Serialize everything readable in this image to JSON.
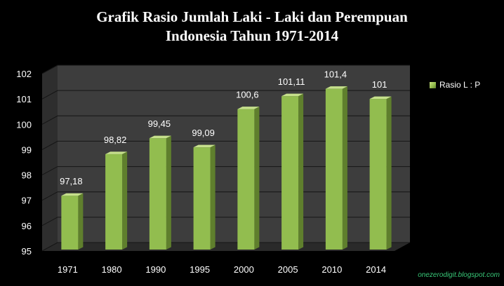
{
  "title_line1": "Grafik Rasio Jumlah Laki - Laki dan Perempuan",
  "title_line2": "Indonesia Tahun 1971-2014",
  "legend_label": "Rasio L : P",
  "watermark": "onezerodigit.blogspot.com",
  "colors": {
    "background": "#000000",
    "bar_front": "#92bd4f",
    "bar_side": "#5f7f2d",
    "bar_top": "#c6e08c",
    "wall": "#3d3d3d",
    "floor": "#2a2a2a",
    "text": "#ffffff",
    "watermark": "#38c878"
  },
  "chart_data": {
    "type": "bar",
    "title": "Grafik Rasio Jumlah Laki - Laki dan Perempuan Indonesia Tahun 1971-2014",
    "categories": [
      "1971",
      "1980",
      "1990",
      "1995",
      "2000",
      "2005",
      "2010",
      "2014"
    ],
    "series": [
      {
        "name": "Rasio L : P",
        "values": [
          97.18,
          98.82,
          99.45,
          99.09,
          100.6,
          101.11,
          101.4,
          101
        ],
        "labels": [
          "97,18",
          "98,82",
          "99,45",
          "99,09",
          "100,6",
          "101,11",
          "101,4",
          "101"
        ]
      }
    ],
    "ylim": [
      95,
      102
    ],
    "yticks": [
      "95",
      "96",
      "97",
      "98",
      "99",
      "100",
      "101",
      "102"
    ],
    "xlabel": "",
    "ylabel": "",
    "grid": true,
    "legend": "right",
    "style": "3d"
  }
}
